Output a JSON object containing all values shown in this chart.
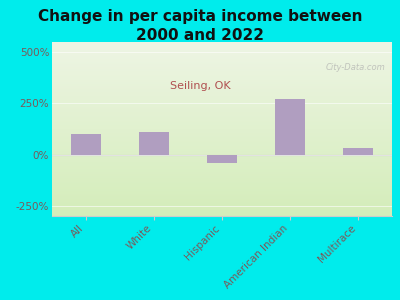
{
  "title": "Change in per capita income between\n2000 and 2022",
  "subtitle": "Seiling, OK",
  "categories": [
    "All",
    "White",
    "Hispanic",
    "American Indian",
    "Multirace"
  ],
  "values": [
    100,
    110,
    -40,
    270,
    30
  ],
  "bar_color": "#b09ec0",
  "background_outer": "#00ecec",
  "background_inner_top": "#eef5e4",
  "background_inner_bottom": "#d4edba",
  "title_color": "#111111",
  "subtitle_color": "#b05050",
  "tick_label_color": "#7a5a5a",
  "watermark": "City-Data.com",
  "ylim": [
    -300,
    550
  ],
  "yticks": [
    -250,
    0,
    250,
    500
  ],
  "title_fontsize": 11,
  "subtitle_fontsize": 8,
  "tick_fontsize": 7.5,
  "bar_width": 0.45
}
